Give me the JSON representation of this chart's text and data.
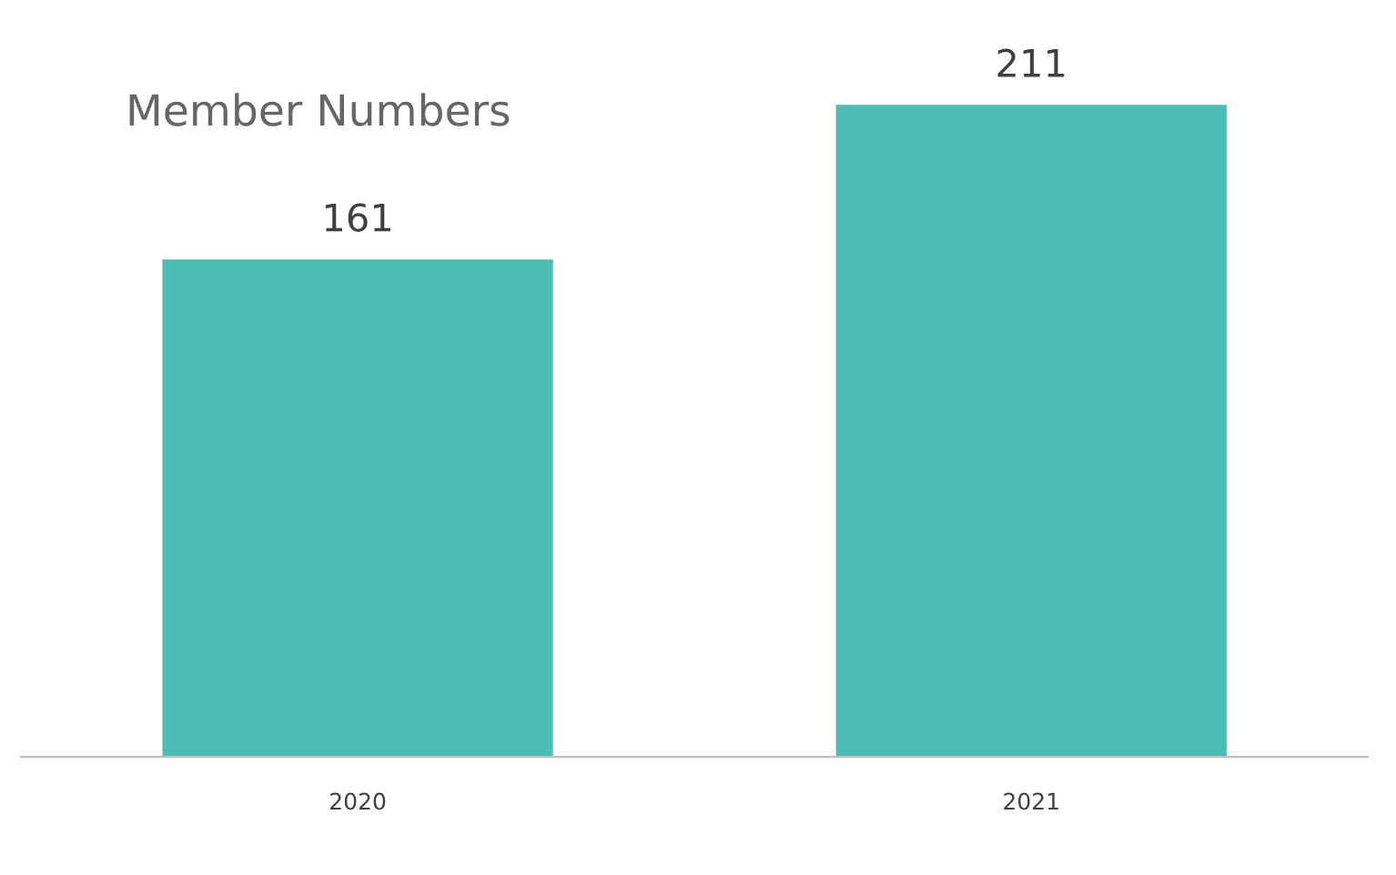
{
  "chart_data": {
    "type": "bar",
    "title": "Member Numbers",
    "categories": [
      "2020",
      "2021"
    ],
    "values": [
      161,
      211
    ],
    "color": "#4dbdb5",
    "data_labels": true,
    "grid": false,
    "legend": false
  }
}
